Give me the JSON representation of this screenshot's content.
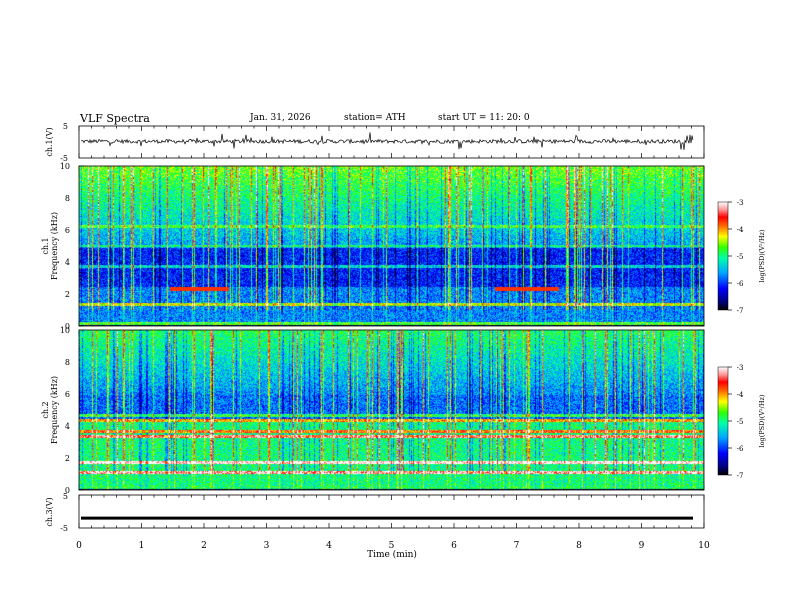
{
  "header": {
    "title": "VLF  Spectra",
    "date": "Jan. 31, 2026",
    "station": "station= ATH",
    "start": "start  UT  =   11: 20: 0"
  },
  "colors": {
    "background": "#ffffff",
    "trace": "#000000",
    "colormap": [
      "#000000",
      "#000080",
      "#0000ff",
      "#00aaff",
      "#00ffcc",
      "#00ff00",
      "#ffff00",
      "#ff8000",
      "#ff0000",
      "#ff8080",
      "#ffffff"
    ]
  },
  "chart_data": [
    {
      "id": "ch1-waveform",
      "type": "line",
      "ylabel": "ch.1(V)",
      "ylim": [
        -5,
        5
      ],
      "yticks": [
        "5",
        "-5"
      ],
      "xlim": [
        0,
        10
      ],
      "description_series": "noisy voltage trace centred near 0 V with spikes"
    },
    {
      "id": "ch1-spectrogram",
      "type": "heatmap",
      "ylabel_line1": "ch.1",
      "ylabel_line2": "Frequency (kHz)",
      "ylim": [
        0,
        10
      ],
      "yticks": [
        "0",
        "2",
        "4",
        "6",
        "8",
        "10"
      ],
      "xlim": [
        0,
        10
      ],
      "colorbar": {
        "label": "log(PSD)(V²/Hz)",
        "range": [
          -7,
          -3
        ],
        "ticks": [
          "-3",
          "-4",
          "-5",
          "-6",
          "-7"
        ]
      }
    },
    {
      "id": "ch2-spectrogram",
      "type": "heatmap",
      "ylabel_line1": "ch.2",
      "ylabel_line2": "Frequency (kHz)",
      "ylim": [
        0,
        10
      ],
      "yticks": [
        "0",
        "2",
        "4",
        "6",
        "8",
        "10"
      ],
      "xlim": [
        0,
        10
      ],
      "colorbar": {
        "label": "log(PSD)(V²/Hz)",
        "range": [
          -7,
          -3
        ],
        "ticks": [
          "-3",
          "-4",
          "-5",
          "-6",
          "-7"
        ]
      }
    },
    {
      "id": "ch3-waveform",
      "type": "line",
      "ylabel": "ch.3(V)",
      "ylim": [
        -5,
        5
      ],
      "yticks": [
        "5",
        "-5"
      ],
      "xlim": [
        0,
        10
      ],
      "description_series": "flat trace near -2 V"
    }
  ],
  "xaxis": {
    "label": "Time  (min)",
    "ticks": [
      "0",
      "1",
      "2",
      "3",
      "4",
      "5",
      "6",
      "7",
      "8",
      "9",
      "10"
    ]
  }
}
